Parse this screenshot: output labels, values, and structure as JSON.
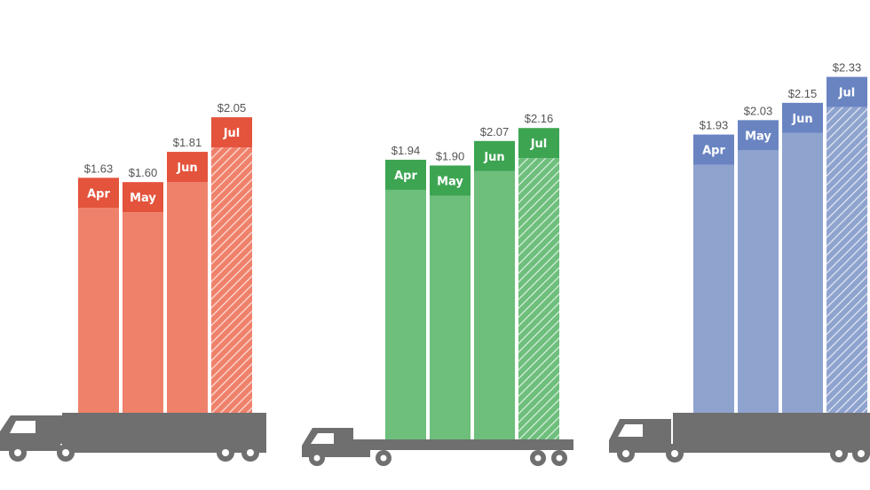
{
  "chart_data": [
    {
      "type": "bar",
      "categories": [
        "Apr",
        "May",
        "Jun",
        "Jul"
      ],
      "values": [
        1.63,
        1.6,
        1.81,
        2.05
      ],
      "value_labels": [
        "$1.63",
        "$1.60",
        "$1.81",
        "$2.05"
      ],
      "ylim": [
        0,
        2.36
      ],
      "colors": {
        "body": "#ef816b",
        "cap": "#e4533c"
      },
      "forecast_hatched": "Jul"
    },
    {
      "type": "bar",
      "categories": [
        "Apr",
        "May",
        "Jun",
        "Jul"
      ],
      "values": [
        1.94,
        1.9,
        2.07,
        2.16
      ],
      "value_labels": [
        "$1.94",
        "$1.90",
        "$2.07",
        "$2.16"
      ],
      "ylim": [
        0,
        2.36
      ],
      "colors": {
        "body": "#6dbf7b",
        "cap": "#3da552"
      },
      "forecast_hatched": "Jul"
    },
    {
      "type": "bar",
      "categories": [
        "Apr",
        "May",
        "Jun",
        "Jul"
      ],
      "values": [
        1.93,
        2.03,
        2.15,
        2.33
      ],
      "value_labels": [
        "$1.93",
        "$2.03",
        "$2.15",
        "$2.33"
      ],
      "ylim": [
        0,
        2.36
      ],
      "colors": {
        "body": "#8fa3cf",
        "cap": "#6a84c2"
      },
      "forecast_hatched": "Jul"
    }
  ],
  "truck_color": "#6f6f6f",
  "truck_icon": "semi-truck-icon"
}
